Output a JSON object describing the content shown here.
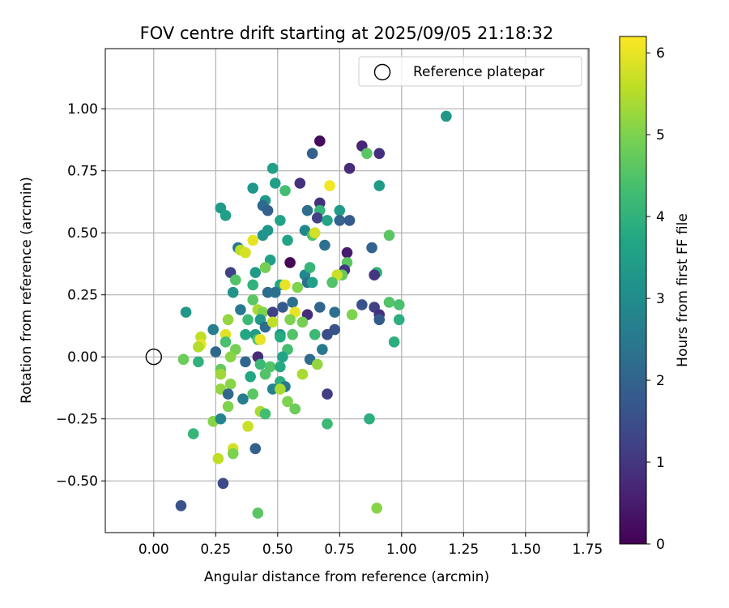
{
  "chart_data": {
    "type": "scatter",
    "title": "FOV centre drift starting at 2025/09/05 21:18:32",
    "xlabel": "Angular distance from reference (arcmin)",
    "ylabel": "Rotation from reference (arcmin)",
    "xlim": [
      -0.2,
      1.76
    ],
    "ylim": [
      -0.71,
      1.24
    ],
    "xticks": [
      0.0,
      0.25,
      0.5,
      0.75,
      1.0,
      1.25,
      1.5,
      1.75
    ],
    "xtick_labels": [
      "0.00",
      "0.25",
      "0.50",
      "0.75",
      "1.00",
      "1.25",
      "1.50",
      "1.75"
    ],
    "yticks": [
      -0.5,
      -0.25,
      0.0,
      0.25,
      0.5,
      0.75,
      1.0
    ],
    "ytick_labels": [
      "−0.50",
      "−0.25",
      "0.00",
      "0.25",
      "0.50",
      "0.75",
      "1.00"
    ],
    "grid": true,
    "legend": {
      "placement": "top-right",
      "entries": [
        "Reference platepar"
      ]
    },
    "reference_point": {
      "x": 0.0,
      "y": 0.0,
      "marker": "open-circle"
    },
    "colorbar": {
      "label": "Hours from first FF file",
      "range": [
        0,
        6.2
      ],
      "ticks": [
        0,
        1,
        2,
        3,
        4,
        5,
        6
      ],
      "tick_labels": [
        "0",
        "1",
        "2",
        "3",
        "4",
        "5",
        "6"
      ],
      "colormap": "viridis"
    },
    "series": [
      {
        "color_by": "hours",
        "points": [
          [
            1.18,
            0.97,
            3.3
          ],
          [
            0.67,
            0.87,
            0.2
          ],
          [
            0.84,
            0.85,
            0.7
          ],
          [
            0.86,
            0.82,
            4.6
          ],
          [
            0.91,
            0.82,
            0.9
          ],
          [
            0.64,
            0.82,
            1.9
          ],
          [
            0.79,
            0.76,
            0.8
          ],
          [
            0.48,
            0.76,
            3.5
          ],
          [
            0.59,
            0.7,
            0.9
          ],
          [
            0.49,
            0.7,
            3.5
          ],
          [
            0.71,
            0.69,
            6.1
          ],
          [
            0.91,
            0.69,
            3.4
          ],
          [
            0.4,
            0.68,
            3.3
          ],
          [
            0.53,
            0.67,
            4.3
          ],
          [
            0.45,
            0.63,
            3.3
          ],
          [
            0.67,
            0.62,
            0.9
          ],
          [
            0.44,
            0.61,
            2.2
          ],
          [
            0.27,
            0.6,
            3.4
          ],
          [
            0.67,
            0.59,
            4.1
          ],
          [
            0.46,
            0.59,
            1.9
          ],
          [
            0.62,
            0.59,
            2.3
          ],
          [
            0.75,
            0.59,
            3.4
          ],
          [
            0.29,
            0.57,
            3.5
          ],
          [
            0.51,
            0.55,
            3.6
          ],
          [
            0.66,
            0.56,
            1.2
          ],
          [
            0.75,
            0.55,
            2.0
          ],
          [
            0.7,
            0.55,
            3.6
          ],
          [
            0.79,
            0.55,
            1.8
          ],
          [
            0.61,
            0.51,
            2.9
          ],
          [
            0.46,
            0.51,
            3.3
          ],
          [
            0.64,
            0.49,
            4.5
          ],
          [
            0.65,
            0.5,
            5.8
          ],
          [
            0.44,
            0.49,
            3.2
          ],
          [
            0.95,
            0.49,
            4.6
          ],
          [
            0.54,
            0.47,
            3.6
          ],
          [
            0.4,
            0.47,
            6.0
          ],
          [
            0.69,
            0.45,
            2.3
          ],
          [
            0.34,
            0.44,
            2.5
          ],
          [
            0.88,
            0.44,
            2.0
          ],
          [
            0.35,
            0.43,
            5.6
          ],
          [
            0.37,
            0.42,
            5.8
          ],
          [
            0.78,
            0.42,
            0.5
          ],
          [
            0.47,
            0.39,
            3.5
          ],
          [
            0.55,
            0.38,
            0.1
          ],
          [
            0.78,
            0.38,
            4.6
          ],
          [
            0.41,
            0.34,
            3.4
          ],
          [
            0.31,
            0.34,
            1.2
          ],
          [
            0.61,
            0.33,
            2.9
          ],
          [
            0.77,
            0.35,
            1.0
          ],
          [
            0.9,
            0.34,
            4.0
          ],
          [
            0.89,
            0.33,
            1.0
          ],
          [
            0.76,
            0.33,
            4.7
          ],
          [
            0.63,
            0.36,
            4.1
          ],
          [
            0.45,
            0.36,
            4.9
          ],
          [
            0.33,
            0.31,
            4.5
          ],
          [
            0.74,
            0.33,
            5.7
          ],
          [
            0.62,
            0.3,
            2.3
          ],
          [
            0.51,
            0.29,
            3.7
          ],
          [
            0.53,
            0.29,
            6.0
          ],
          [
            0.4,
            0.29,
            4.0
          ],
          [
            0.72,
            0.3,
            4.5
          ],
          [
            0.64,
            0.3,
            3.5
          ],
          [
            0.46,
            0.26,
            2.2
          ],
          [
            0.58,
            0.28,
            5.0
          ],
          [
            0.49,
            0.26,
            2.3
          ],
          [
            0.32,
            0.26,
            3.2
          ],
          [
            0.4,
            0.23,
            4.6
          ],
          [
            0.56,
            0.22,
            2.3
          ],
          [
            0.95,
            0.22,
            4.5
          ],
          [
            0.99,
            0.21,
            4.4
          ],
          [
            0.67,
            0.2,
            2.0
          ],
          [
            0.84,
            0.21,
            1.6
          ],
          [
            0.89,
            0.2,
            1.2
          ],
          [
            0.52,
            0.2,
            1.8
          ],
          [
            0.35,
            0.19,
            2.5
          ],
          [
            0.42,
            0.19,
            5.4
          ],
          [
            0.44,
            0.18,
            5.0
          ],
          [
            0.48,
            0.18,
            1.2
          ],
          [
            0.57,
            0.18,
            6.0
          ],
          [
            0.62,
            0.17,
            0.8
          ],
          [
            0.73,
            0.18,
            2.3
          ],
          [
            0.8,
            0.17,
            5.0
          ],
          [
            0.91,
            0.17,
            0.9
          ],
          [
            0.91,
            0.15,
            1.8
          ],
          [
            0.99,
            0.15,
            3.9
          ],
          [
            0.13,
            0.18,
            3.3
          ],
          [
            0.3,
            0.15,
            5.2
          ],
          [
            0.38,
            0.15,
            4.2
          ],
          [
            0.43,
            0.15,
            3.3
          ],
          [
            0.45,
            0.12,
            2.2
          ],
          [
            0.48,
            0.14,
            5.6
          ],
          [
            0.55,
            0.15,
            5.0
          ],
          [
            0.6,
            0.14,
            4.9
          ],
          [
            0.24,
            0.11,
            2.6
          ],
          [
            0.37,
            0.09,
            3.7
          ],
          [
            0.41,
            0.09,
            3.4
          ],
          [
            0.42,
            0.07,
            4.4
          ],
          [
            0.43,
            0.07,
            6.0
          ],
          [
            0.51,
            0.09,
            3.2
          ],
          [
            0.51,
            0.08,
            3.8
          ],
          [
            0.56,
            0.09,
            4.5
          ],
          [
            0.65,
            0.09,
            4.2
          ],
          [
            0.7,
            0.09,
            1.5
          ],
          [
            0.73,
            0.11,
            1.6
          ],
          [
            0.97,
            0.06,
            3.9
          ],
          [
            0.19,
            0.08,
            5.6
          ],
          [
            0.29,
            0.09,
            5.9
          ],
          [
            0.29,
            0.06,
            4.4
          ],
          [
            0.19,
            0.05,
            6.0
          ],
          [
            0.18,
            0.04,
            5.5
          ],
          [
            0.33,
            0.03,
            4.9
          ],
          [
            0.54,
            0.03,
            4.3
          ],
          [
            0.68,
            0.03,
            2.5
          ],
          [
            0.25,
            0.02,
            2.1
          ],
          [
            0.42,
            0.0,
            0.8
          ],
          [
            0.52,
            0.0,
            3.6
          ],
          [
            0.31,
            0.0,
            5.1
          ],
          [
            0.12,
            -0.01,
            4.8
          ],
          [
            0.18,
            -0.02,
            4.0
          ],
          [
            0.37,
            -0.02,
            2.1
          ],
          [
            0.63,
            -0.01,
            2.2
          ],
          [
            0.66,
            -0.03,
            5.2
          ],
          [
            0.43,
            -0.03,
            4.2
          ],
          [
            0.47,
            -0.04,
            4.5
          ],
          [
            0.51,
            -0.04,
            3.8
          ],
          [
            0.27,
            -0.05,
            4.7
          ],
          [
            0.27,
            -0.07,
            5.3
          ],
          [
            0.45,
            -0.07,
            4.5
          ],
          [
            0.6,
            -0.07,
            5.4
          ],
          [
            0.39,
            -0.08,
            3.7
          ],
          [
            0.51,
            -0.1,
            3.9
          ],
          [
            0.31,
            -0.11,
            5.1
          ],
          [
            0.53,
            -0.12,
            2.5
          ],
          [
            0.48,
            -0.13,
            2.8
          ],
          [
            0.51,
            -0.13,
            5.4
          ],
          [
            0.27,
            -0.13,
            5.2
          ],
          [
            0.3,
            -0.15,
            2.1
          ],
          [
            0.4,
            -0.15,
            4.6
          ],
          [
            0.7,
            -0.15,
            1.1
          ],
          [
            0.36,
            -0.17,
            2.6
          ],
          [
            0.54,
            -0.18,
            5.0
          ],
          [
            0.3,
            -0.2,
            5.0
          ],
          [
            0.57,
            -0.21,
            4.8
          ],
          [
            0.43,
            -0.22,
            5.4
          ],
          [
            0.45,
            -0.23,
            4.3
          ],
          [
            0.24,
            -0.26,
            5.1
          ],
          [
            0.27,
            -0.25,
            2.8
          ],
          [
            0.38,
            -0.28,
            5.7
          ],
          [
            0.7,
            -0.27,
            4.2
          ],
          [
            0.87,
            -0.25,
            3.9
          ],
          [
            0.16,
            -0.31,
            4.1
          ],
          [
            0.41,
            -0.37,
            1.9
          ],
          [
            0.32,
            -0.37,
            5.8
          ],
          [
            0.32,
            -0.39,
            5.0
          ],
          [
            0.26,
            -0.41,
            5.6
          ],
          [
            0.28,
            -0.51,
            1.4
          ],
          [
            0.11,
            -0.6,
            1.6
          ],
          [
            0.9,
            -0.61,
            5.1
          ],
          [
            0.42,
            -0.63,
            4.6
          ]
        ]
      }
    ]
  }
}
